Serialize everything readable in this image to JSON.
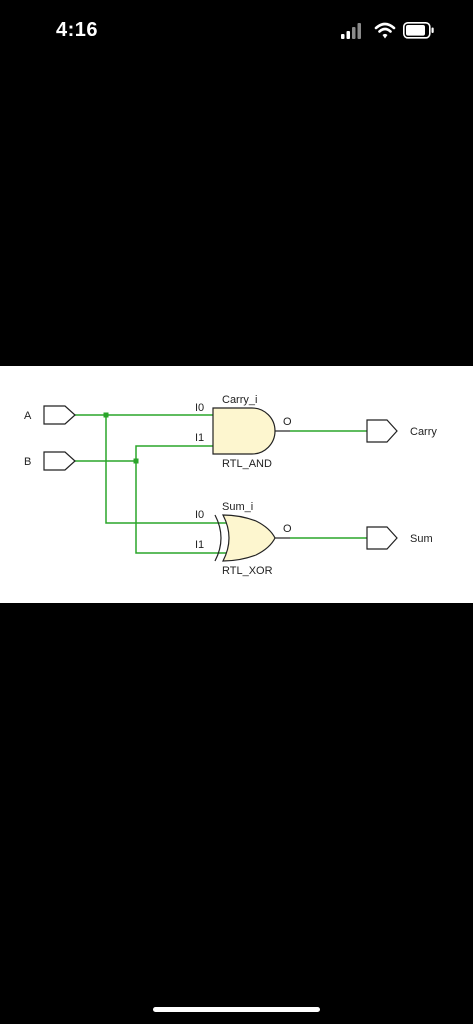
{
  "status_bar": {
    "time": "4:16",
    "icons": [
      "cellular-signal-icon",
      "wifi-icon",
      "battery-icon"
    ]
  },
  "schematic": {
    "inputs": [
      {
        "name": "A"
      },
      {
        "name": "B"
      }
    ],
    "outputs": [
      {
        "name": "Carry"
      },
      {
        "name": "Sum"
      }
    ],
    "gates": [
      {
        "instance": "Carry_i",
        "type": "RTL_AND",
        "pins": {
          "in0": "I0",
          "in1": "I1",
          "out": "O"
        }
      },
      {
        "instance": "Sum_i",
        "type": "RTL_XOR",
        "pins": {
          "in0": "I0",
          "in1": "I1",
          "out": "O"
        }
      }
    ],
    "colors": {
      "wire": "#2aa52a",
      "gate_fill": "#fdf6cf",
      "gate_stroke": "#222222",
      "background": "#ffffff"
    }
  }
}
